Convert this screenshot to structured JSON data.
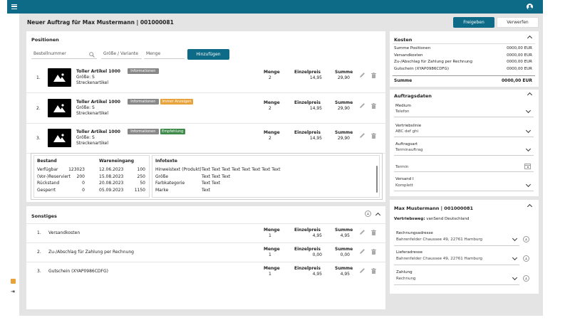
{
  "header": {
    "title": "Neuer Auftrag für Max Mustermann | 001000081",
    "release_label": "Freigeben",
    "discard_label": "Verwerfen"
  },
  "positions": {
    "title": "Positionen",
    "search": {
      "article_placeholder": "Bestellnummer",
      "size_placeholder": "Größe / Variante",
      "qty_placeholder": "Menge",
      "add_label": "Hinzufügen"
    },
    "col_qty": "Menge",
    "col_price": "Einzelpreis",
    "col_sum": "Summe",
    "items": [
      {
        "index": "1.",
        "name": "Toller Artikel 1000",
        "size": "Größe: S",
        "type": "Streckenartikel",
        "tags": [
          {
            "label": "Informationen",
            "color": "grey"
          }
        ],
        "qty": "2",
        "price": "14,95",
        "sum": "29,90"
      },
      {
        "index": "2.",
        "name": "Toller Artikel 1000",
        "size": "Größe: S",
        "type": "Streckenartikel",
        "tags": [
          {
            "label": "Informationen",
            "color": "grey"
          },
          {
            "label": "Immer Anzeigen",
            "color": "orange"
          }
        ],
        "qty": "2",
        "price": "14,95",
        "sum": "29,90"
      },
      {
        "index": "3.",
        "name": "Toller Artikel 1000",
        "size": "Größe: S",
        "type": "Streckenartikel",
        "tags": [
          {
            "label": "Informationen",
            "color": "grey"
          },
          {
            "label": "Empfehlung",
            "color": "green"
          }
        ],
        "qty": "2",
        "price": "14,95",
        "sum": "29,90"
      }
    ],
    "stock": {
      "col1": "Bestand",
      "col2": "Wareneingang",
      "rows": [
        {
          "label": "Verfügbar",
          "val": "123023",
          "date": "12.06.2023",
          "qty": "100"
        },
        {
          "label": "(Vor-)Reserviert",
          "val": "200",
          "date": "15.08.2023",
          "qty": "250"
        },
        {
          "label": "Rückstand",
          "val": "0",
          "date": "20.08.2023",
          "qty": "50"
        },
        {
          "label": "Gesperrt",
          "val": "0",
          "date": "05.09.2023",
          "qty": "1150"
        }
      ]
    },
    "info": {
      "title": "Infotexte",
      "rows": [
        {
          "label": "Hinweistext (Produkt)",
          "val": "Text Text Text Text Text Text Text Text"
        },
        {
          "label": "Größe",
          "val": "Text Text Text"
        },
        {
          "label": "Farbkategorie",
          "val": "Text Text"
        },
        {
          "label": "Marke",
          "val": "Text"
        }
      ]
    }
  },
  "sonstiges": {
    "title": "Sonstiges",
    "rows": [
      {
        "index": "1.",
        "name": "Versandkosten",
        "qty": "1",
        "price": "4,95",
        "sum": "4,95"
      },
      {
        "index": "2.",
        "name": "Zu-/Abschlag für Zahlung per Rechnung",
        "qty": "1",
        "price": "0,00",
        "sum": "0,00"
      },
      {
        "index": "3.",
        "name": "Gutschein (XYAP0986CDFG)",
        "qty": "1",
        "price": "4,95",
        "sum": "4,95"
      }
    ]
  },
  "kosten": {
    "title": "Kosten",
    "rows": [
      {
        "label": "Summe Positionen",
        "val": "0000,00 EUR"
      },
      {
        "label": "Versandkosten",
        "val": "0000,00 EUR"
      },
      {
        "label": "Zu-/Abschlag für Zahlung per Rechnung",
        "val": "0000,00 EUR"
      },
      {
        "label": "Gutschein (XYAP0986CDFG)",
        "val": "0000,00 EUR"
      }
    ],
    "total_label": "Summe",
    "total_val": "0000,00 EUR"
  },
  "auftragsdaten": {
    "title": "Auftragsdaten",
    "fields": [
      {
        "label": "Medium",
        "val": "Telefon"
      },
      {
        "label": "Vertriebslinie",
        "val": "ABC def ghi"
      },
      {
        "label": "Auftragsart",
        "val": "Terminauftrag"
      }
    ],
    "termin_placeholder": "Termin",
    "versand": {
      "label": "Versand I",
      "val": "Komplett"
    }
  },
  "customer": {
    "title": "Max Mustermann | 001000081",
    "channel_label": "Vertriebsweg:",
    "channel_val": "vanSend Deutschland",
    "fields": [
      {
        "label": "Rechnungsadresse",
        "val": "Bahrenfelder Chaussee 49, 22761 Hamburg"
      },
      {
        "label": "Lieferadresse",
        "val": "Bahrenfelder Chaussee 49, 22761 Hamburg"
      },
      {
        "label": "Zahlung",
        "val": "Rechnung"
      }
    ]
  },
  "colors": {
    "accent": "#0d6b87",
    "orange": "#e8a23a",
    "green": "#3f8b4b"
  }
}
